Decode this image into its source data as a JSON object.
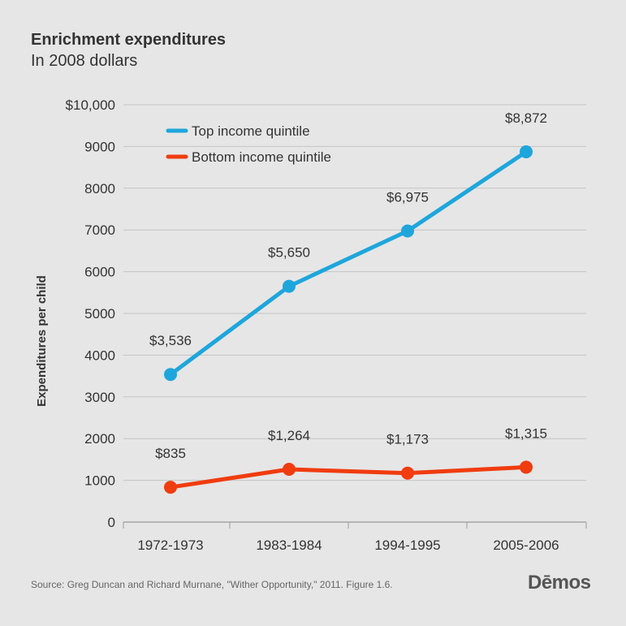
{
  "title": "Enrichment expenditures",
  "subtitle": "In 2008 dollars",
  "source": "Source: Greg Duncan and Richard Murnane, \"Wither Opportunity,\" 2011. Figure 1.6.",
  "logo": "Dēmos",
  "colors": {
    "top": "#1ea6dc",
    "bottom": "#f03c0f",
    "grid": "#c4c4c4",
    "background": "#e6e6e6",
    "text": "#333333"
  },
  "chart_data": {
    "type": "line",
    "title": "Enrichment expenditures",
    "subtitle": "In 2008 dollars",
    "xlabel": "",
    "ylabel": "Expenditures per child",
    "categories": [
      "1972-1973",
      "1983-1984",
      "1994-1995",
      "2005-2006"
    ],
    "ylim": [
      0,
      10000
    ],
    "yticks": [
      0,
      1000,
      2000,
      3000,
      4000,
      5000,
      6000,
      7000,
      8000,
      9000,
      10000
    ],
    "ytick_labels": [
      "0",
      "1000",
      "2000",
      "3000",
      "4000",
      "5000",
      "6000",
      "7000",
      "8000",
      "9000",
      "$10,000"
    ],
    "grid": true,
    "legend_position": "top-left",
    "series": [
      {
        "name": "Top income quintile",
        "values": [
          3536,
          5650,
          6975,
          8872
        ],
        "labels": [
          "$3,536",
          "$5,650",
          "$6,975",
          "$8,872"
        ],
        "color": "#1ea6dc"
      },
      {
        "name": "Bottom income quintile",
        "values": [
          835,
          1264,
          1173,
          1315
        ],
        "labels": [
          "$835",
          "$1,264",
          "$1,173",
          "$1,315"
        ],
        "color": "#f03c0f"
      }
    ]
  }
}
